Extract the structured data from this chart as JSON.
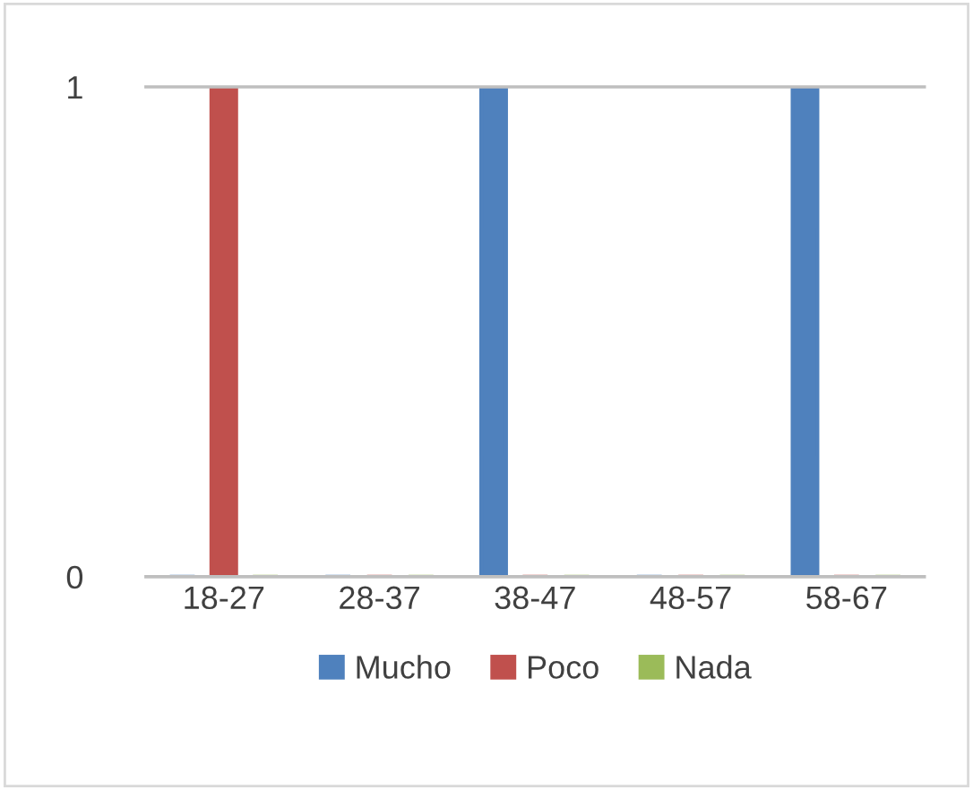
{
  "chart_data": {
    "type": "bar",
    "categories": [
      "18-27",
      "28-37",
      "38-47",
      "48-57",
      "58-67"
    ],
    "series": [
      {
        "name": "Mucho",
        "color": "#4f81bd",
        "values": [
          0,
          0,
          1,
          0,
          1
        ]
      },
      {
        "name": "Poco",
        "color": "#c0504d",
        "values": [
          1,
          0,
          0,
          0,
          0
        ]
      },
      {
        "name": "Nada",
        "color": "#9bbb59",
        "values": [
          0,
          0,
          0,
          0,
          0
        ]
      }
    ],
    "ylim": [
      0,
      1
    ],
    "yticks": [
      0,
      1
    ],
    "legend": "bottom"
  }
}
